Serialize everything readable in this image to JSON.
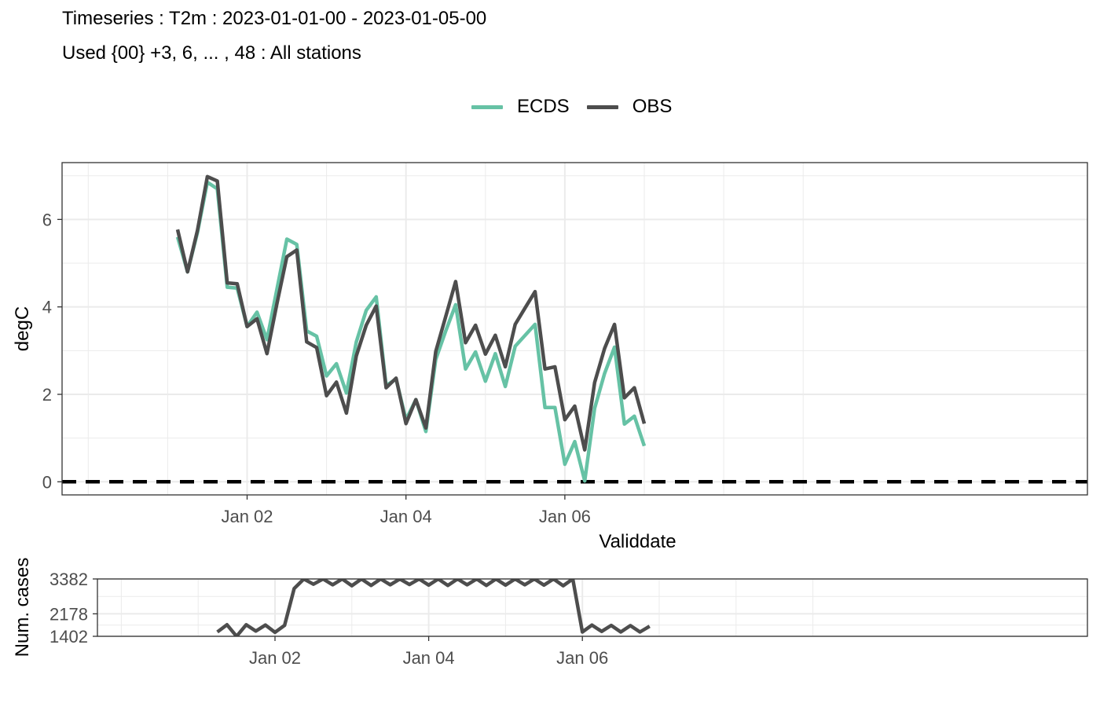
{
  "header": {
    "title": "Timeseries : T2m : 2023-01-01-00 - 2023-01-05-00",
    "subtitle": "Used {00} +3, 6, ... , 48 : All stations"
  },
  "legend": {
    "items": [
      {
        "label": "ECDS",
        "color": "#66c2a5"
      },
      {
        "label": "OBS",
        "color": "#4d4d4d"
      }
    ],
    "placement": "top"
  },
  "chart_data": [
    {
      "type": "line",
      "xlabel": "Validdate",
      "ylabel": "degC",
      "x_unit": "hours",
      "x_start": "2023-01-01 03:00",
      "x_step_hours": 3,
      "x_ticks": [
        "Jan 02",
        "Jan 04",
        "Jan 06"
      ],
      "y_ticks": [
        0,
        2,
        4,
        6
      ],
      "ylim": [
        -0.3,
        7.3
      ],
      "grid": true,
      "reference_line": {
        "y": 0,
        "style": "dashed",
        "color": "#000000"
      },
      "series": [
        {
          "name": "ECDS",
          "color": "#66c2a5",
          "values": [
            5.6,
            4.8,
            5.7,
            6.85,
            6.7,
            4.45,
            4.43,
            3.55,
            3.88,
            3.25,
            4.4,
            5.55,
            5.43,
            3.45,
            3.33,
            2.42,
            2.7,
            2.03,
            3.2,
            3.92,
            4.23,
            2.2,
            2.35,
            1.42,
            1.88,
            1.15,
            2.8,
            3.45,
            4.05,
            2.58,
            2.97,
            2.3,
            2.93,
            2.18,
            3.1,
            3.35,
            3.6,
            1.7,
            1.7,
            0.4,
            0.92,
            0.02,
            1.68,
            2.48,
            3.08,
            1.32,
            1.5,
            0.82
          ]
        },
        {
          "name": "OBS",
          "color": "#4d4d4d",
          "values": [
            5.77,
            4.8,
            5.75,
            6.98,
            6.88,
            4.55,
            4.53,
            3.55,
            3.73,
            2.93,
            4.07,
            5.15,
            5.3,
            3.2,
            3.07,
            1.97,
            2.28,
            1.57,
            2.88,
            3.58,
            4.02,
            2.15,
            2.37,
            1.33,
            1.88,
            1.23,
            2.98,
            3.78,
            4.58,
            3.18,
            3.58,
            2.92,
            3.35,
            2.63,
            3.6,
            3.98,
            4.35,
            2.58,
            2.63,
            1.42,
            1.73,
            0.73,
            2.27,
            3.05,
            3.6,
            1.92,
            2.15,
            1.33
          ]
        }
      ]
    },
    {
      "type": "line",
      "ylabel": "Num. cases",
      "x_unit": "hours",
      "x_start": "2023-01-01 06:00",
      "x_step_hours": 3,
      "x_ticks": [
        "Jan 02",
        "Jan 04",
        "Jan 06"
      ],
      "y_ticks": [
        1402,
        2178,
        3382
      ],
      "ylim": [
        1402,
        3382
      ],
      "grid": true,
      "series": [
        {
          "name": "",
          "color": "#4d4d4d",
          "values": [
            1550,
            1800,
            1402,
            1800,
            1580,
            1790,
            1540,
            1780,
            3050,
            3382,
            3200,
            3382,
            3180,
            3382,
            3150,
            3382,
            3160,
            3382,
            3180,
            3382,
            3190,
            3382,
            3170,
            3382,
            3160,
            3382,
            3180,
            3382,
            3160,
            3382,
            3170,
            3382,
            3180,
            3382,
            3170,
            3382,
            3150,
            3382,
            1550,
            1790,
            1570,
            1780,
            1550,
            1770,
            1550,
            1750
          ]
        }
      ]
    }
  ]
}
